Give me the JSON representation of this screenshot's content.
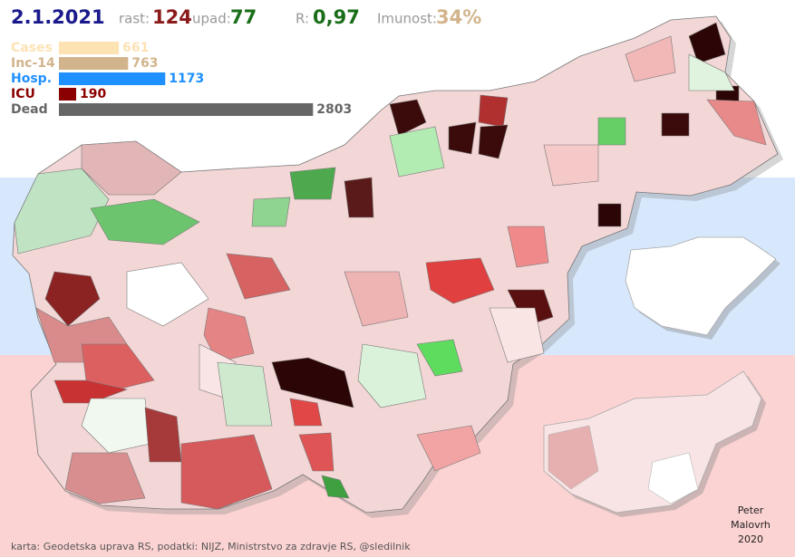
{
  "header": {
    "date": "2.1.2021",
    "rise_label": "rast:",
    "rise": "124",
    "fall_label": "upad:",
    "fall": "77",
    "r_label": "R:",
    "r": "0,97",
    "immunity_label": "Imunost:",
    "immunity": "34%"
  },
  "stats": [
    {
      "label": "Cases",
      "value": 661,
      "color": "#fde2b4"
    },
    {
      "label": "Inc-14",
      "value": 763,
      "color": "#d2b48c"
    },
    {
      "label": "Hosp.",
      "value": 1173,
      "color": "#1e90ff"
    },
    {
      "label": "ICU",
      "value": 190,
      "color": "#8b0000"
    },
    {
      "label": "Dead",
      "value": 2803,
      "color": "#666666"
    }
  ],
  "footer": {
    "source": "karta: Geodetska uprava RS,  podatki: NIJZ, Ministrstvo za zdravje RS, @sledilnik",
    "author": [
      "Peter",
      "Malovrh",
      "2020"
    ]
  }
}
